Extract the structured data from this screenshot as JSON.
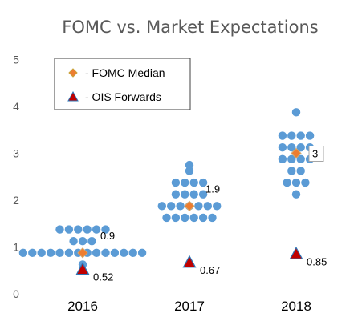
{
  "chart_data": {
    "type": "scatter",
    "title": "FOMC vs. Market Expectations",
    "xlabel": "",
    "ylabel": "",
    "ylim": [
      0,
      5
    ],
    "yticks": [
      "0",
      "1",
      "2",
      "3",
      "4",
      "5"
    ],
    "categories": [
      "2016",
      "2017",
      "2018"
    ],
    "legend": {
      "position": "top-left",
      "entries": [
        {
          "label": "- FOMC Median",
          "marker": "diamond",
          "color": "#ED7D31"
        },
        {
          "label": "- OIS Forwards",
          "marker": "triangle",
          "color": "#C00000"
        }
      ]
    },
    "colors": {
      "dots": "#5B9BD5",
      "median": "#ED7D31",
      "ois": "#C00000",
      "ois_outline": "#2E75B6",
      "title": "#595959"
    },
    "dot_plot": [
      {
        "year": "2016",
        "values": [
          0.625,
          0.875,
          0.875,
          0.875,
          0.875,
          0.875,
          0.875,
          0.875,
          0.875,
          0.875,
          0.875,
          0.875,
          0.875,
          0.875,
          0.875,
          1.125,
          1.125,
          1.125,
          1.375,
          1.375,
          1.375,
          1.375,
          1.375,
          1.375
        ]
      },
      {
        "year": "2017",
        "values": [
          1.625,
          1.625,
          1.625,
          1.625,
          1.625,
          1.625,
          1.875,
          1.875,
          1.875,
          1.875,
          1.875,
          1.875,
          1.875,
          2.125,
          2.125,
          2.125,
          2.125,
          2.375,
          2.375,
          2.375,
          2.375,
          2.625,
          2.75
        ]
      },
      {
        "year": "2018",
        "values": [
          2.125,
          2.375,
          2.375,
          2.375,
          2.625,
          2.625,
          2.875,
          2.875,
          2.875,
          2.875,
          3.125,
          3.125,
          3.125,
          3.125,
          3.375,
          3.375,
          3.375,
          3.375,
          3.875
        ]
      }
    ],
    "fomc_median": {
      "values": [
        0.875,
        1.875,
        3.0
      ],
      "labels": [
        "0.9",
        "1.9",
        "3"
      ]
    },
    "ois_forwards": {
      "values": [
        0.52,
        0.67,
        0.85
      ],
      "labels": [
        "0.52",
        "0.67",
        "0.85"
      ]
    }
  }
}
